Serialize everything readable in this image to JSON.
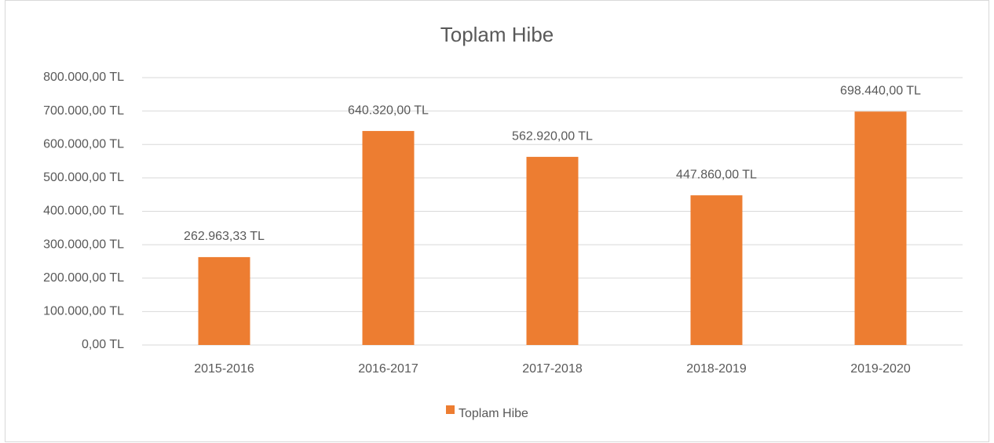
{
  "chart_data": {
    "type": "bar",
    "title": "Toplam Hibe",
    "categories": [
      "2015-2016",
      "2016-2017",
      "2017-2018",
      "2018-2019",
      "2019-2020"
    ],
    "series": [
      {
        "name": "Toplam Hibe",
        "color": "#ed7d31",
        "values": [
          262963.33,
          640320,
          562920,
          447860,
          698440
        ],
        "value_labels": [
          "262.963,33 TL",
          "640.320,00 TL",
          "562.920,00 TL",
          "447.860,00 TL",
          "698.440,00 TL"
        ]
      }
    ],
    "ylim": [
      0,
      800000
    ],
    "yticks": [
      {
        "value": 0,
        "label": "0,00 TL"
      },
      {
        "value": 100000,
        "label": "100.000,00 TL"
      },
      {
        "value": 200000,
        "label": "200.000,00 TL"
      },
      {
        "value": 300000,
        "label": "300.000,00 TL"
      },
      {
        "value": 400000,
        "label": "400.000,00 TL"
      },
      {
        "value": 500000,
        "label": "500.000,00 TL"
      },
      {
        "value": 600000,
        "label": "600.000,00 TL"
      },
      {
        "value": 700000,
        "label": "700.000,00 TL"
      },
      {
        "value": 800000,
        "label": "800.000,00 TL"
      }
    ],
    "grid": true,
    "legend": "bottom"
  }
}
